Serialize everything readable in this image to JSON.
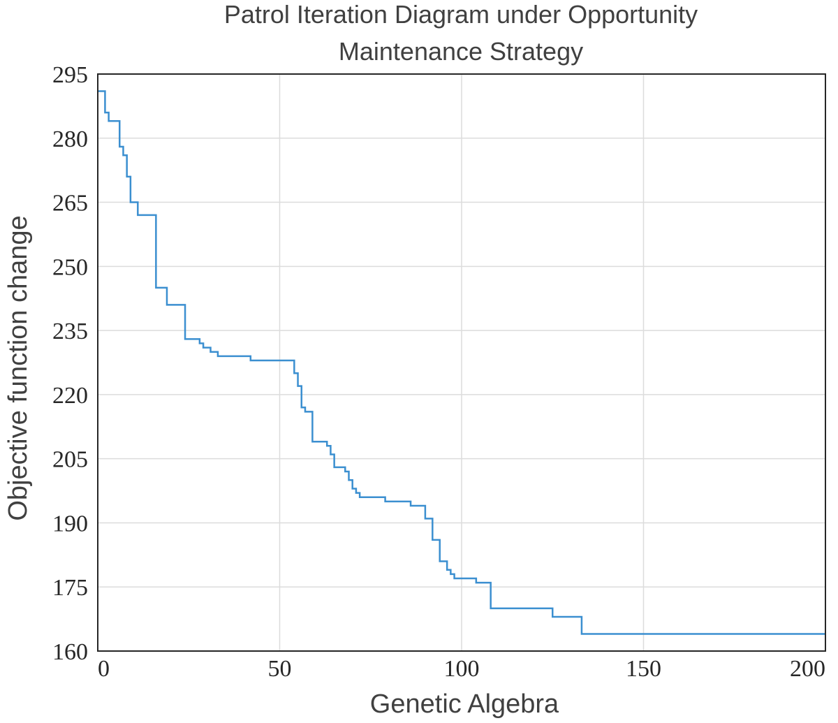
{
  "chart_data": {
    "type": "line",
    "title": [
      "Patrol Iteration Diagram under Opportunity",
      "Maintenance Strategy"
    ],
    "xlabel": "Genetic Algebra",
    "ylabel": "Objective function change",
    "xlim": [
      0,
      200
    ],
    "ylim": [
      160,
      295
    ],
    "xticks": [
      0,
      50,
      100,
      150,
      200
    ],
    "yticks": [
      160,
      175,
      190,
      205,
      220,
      235,
      250,
      265,
      280,
      295
    ],
    "grid": true,
    "series": [
      {
        "color": "#3b8fd0",
        "x": [
          0,
          1,
          2,
          3,
          4,
          5,
          6,
          7,
          8,
          9,
          10,
          11,
          12,
          13,
          14,
          15,
          16,
          17,
          18,
          19,
          20,
          21,
          22,
          23,
          24,
          25,
          26,
          27,
          28,
          29,
          30,
          31,
          32,
          33,
          34,
          35,
          36,
          37,
          38,
          39,
          40,
          41,
          42,
          43,
          44,
          45,
          46,
          47,
          48,
          49,
          50,
          51,
          52,
          53,
          54,
          55,
          56,
          57,
          58,
          59,
          60,
          61,
          62,
          63,
          64,
          65,
          66,
          67,
          68,
          69,
          70,
          71,
          72,
          73,
          74,
          75,
          76,
          77,
          78,
          79,
          80,
          81,
          82,
          83,
          84,
          85,
          86,
          87,
          88,
          89,
          90,
          91,
          92,
          93,
          94,
          95,
          96,
          97,
          98,
          99,
          100,
          101,
          102,
          103,
          104,
          105,
          106,
          107,
          108,
          109,
          110,
          115,
          120,
          124,
          125,
          130,
          132,
          133,
          140,
          150,
          160,
          170,
          180,
          190,
          200
        ],
        "y": [
          291,
          291,
          286,
          284,
          284,
          284,
          278,
          276,
          271,
          265,
          265,
          262,
          262,
          262,
          262,
          262,
          245,
          245,
          245,
          241,
          241,
          241,
          241,
          241,
          233,
          233,
          233,
          233,
          232,
          231,
          231,
          230,
          230,
          229,
          229,
          229,
          229,
          229,
          229,
          229,
          229,
          229,
          228,
          228,
          228,
          228,
          228,
          228,
          228,
          228,
          228,
          228,
          228,
          228,
          225,
          222,
          217,
          216,
          216,
          209,
          209,
          209,
          209,
          208,
          206,
          203,
          203,
          203,
          202,
          200,
          198,
          197,
          196,
          196,
          196,
          196,
          196,
          196,
          196,
          195,
          195,
          195,
          195,
          195,
          195,
          195,
          194,
          194,
          194,
          194,
          191,
          191,
          186,
          186,
          181,
          181,
          179,
          178,
          177,
          177,
          177,
          177,
          177,
          177,
          176,
          176,
          176,
          176,
          170,
          170,
          170,
          170,
          170,
          170,
          168,
          168,
          168,
          164,
          164,
          164,
          164,
          164,
          164,
          164,
          164
        ]
      }
    ]
  }
}
